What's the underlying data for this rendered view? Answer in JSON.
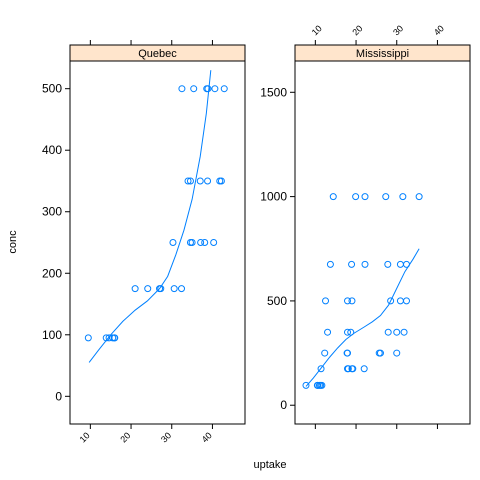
{
  "chart_data": {
    "type": "scatter",
    "xlabel": "uptake",
    "ylabel": "conc",
    "xlim": [
      5,
      48
    ],
    "ylim": [
      -45,
      545
    ],
    "ylim_right": [
      -90,
      1650
    ],
    "x_ticks": [
      10,
      20,
      30,
      40
    ],
    "x_tick_labels": [
      "10",
      "20",
      "30",
      "40"
    ],
    "y_ticks_left": [
      0,
      100,
      200,
      300,
      400,
      500
    ],
    "y_tick_labels_left": [
      "0",
      "100",
      "200",
      "300",
      "400",
      "500"
    ],
    "y_ticks_right": [
      0,
      500,
      1000,
      1500
    ],
    "y_tick_labels_right": [
      "0",
      "500",
      "1000",
      "1500"
    ],
    "grid": false,
    "colors": {
      "points": "#0080ff",
      "strip": "#ffe5cc",
      "frame": "#000000"
    },
    "panels": [
      {
        "name": "Quebec",
        "points": [
          [
            9.5,
            95
          ],
          [
            13.9,
            95
          ],
          [
            14.6,
            95
          ],
          [
            15.5,
            95
          ],
          [
            15.9,
            95
          ],
          [
            16.0,
            95
          ],
          [
            21.0,
            175
          ],
          [
            24.1,
            175
          ],
          [
            27.0,
            175
          ],
          [
            27.3,
            175
          ],
          [
            30.6,
            175
          ],
          [
            32.4,
            175
          ],
          [
            30.3,
            250
          ],
          [
            34.6,
            250
          ],
          [
            35.0,
            250
          ],
          [
            37.1,
            250
          ],
          [
            38.1,
            250
          ],
          [
            40.3,
            250
          ],
          [
            34.0,
            350
          ],
          [
            34.6,
            350
          ],
          [
            37.0,
            350
          ],
          [
            38.8,
            350
          ],
          [
            41.8,
            350
          ],
          [
            42.2,
            350
          ],
          [
            32.5,
            500
          ],
          [
            35.4,
            500
          ],
          [
            38.6,
            500
          ],
          [
            38.9,
            500
          ],
          [
            40.6,
            500
          ],
          [
            42.9,
            500
          ]
        ],
        "smooth": [
          [
            9.7,
            55
          ],
          [
            12.0,
            75
          ],
          [
            15.0,
            100
          ],
          [
            18.0,
            122
          ],
          [
            21.0,
            140
          ],
          [
            24.0,
            155
          ],
          [
            27.0,
            175
          ],
          [
            29.0,
            195
          ],
          [
            31.0,
            230
          ],
          [
            33.0,
            270
          ],
          [
            35.0,
            320
          ],
          [
            37.0,
            390
          ],
          [
            38.5,
            460
          ],
          [
            39.6,
            530
          ]
        ]
      },
      {
        "name": "Mississippi",
        "points": [
          [
            7.7,
            95
          ],
          [
            10.5,
            95
          ],
          [
            10.6,
            95
          ],
          [
            11.0,
            95
          ],
          [
            11.3,
            95
          ],
          [
            11.6,
            95
          ],
          [
            11.4,
            175
          ],
          [
            17.9,
            175
          ],
          [
            19.0,
            175
          ],
          [
            19.2,
            175
          ],
          [
            22.0,
            175
          ],
          [
            18.1,
            175
          ],
          [
            12.3,
            250
          ],
          [
            17.9,
            250
          ],
          [
            17.8,
            250
          ],
          [
            25.7,
            250
          ],
          [
            26.0,
            250
          ],
          [
            30.0,
            250
          ],
          [
            13.0,
            350
          ],
          [
            17.9,
            350
          ],
          [
            18.7,
            350
          ],
          [
            27.9,
            350
          ],
          [
            30.0,
            350
          ],
          [
            31.8,
            350
          ],
          [
            12.5,
            500
          ],
          [
            17.9,
            500
          ],
          [
            19.0,
            500
          ],
          [
            28.5,
            500
          ],
          [
            30.9,
            500
          ],
          [
            32.4,
            500
          ],
          [
            13.7,
            675
          ],
          [
            18.9,
            675
          ],
          [
            22.2,
            675
          ],
          [
            27.8,
            675
          ],
          [
            30.9,
            675
          ],
          [
            32.4,
            675
          ],
          [
            14.4,
            1000
          ],
          [
            19.9,
            1000
          ],
          [
            22.2,
            1000
          ],
          [
            27.3,
            1000
          ],
          [
            31.5,
            1000
          ],
          [
            35.5,
            1000
          ]
        ],
        "smooth": [
          [
            7.7,
            90
          ],
          [
            9.5,
            130
          ],
          [
            11.5,
            180
          ],
          [
            13.5,
            230
          ],
          [
            15.5,
            275
          ],
          [
            17.5,
            315
          ],
          [
            19.5,
            345
          ],
          [
            22.0,
            375
          ],
          [
            24.0,
            400
          ],
          [
            26.0,
            430
          ],
          [
            28.0,
            480
          ],
          [
            30.0,
            560
          ],
          [
            32.0,
            640
          ],
          [
            34.0,
            700
          ],
          [
            35.5,
            750
          ]
        ]
      }
    ]
  }
}
